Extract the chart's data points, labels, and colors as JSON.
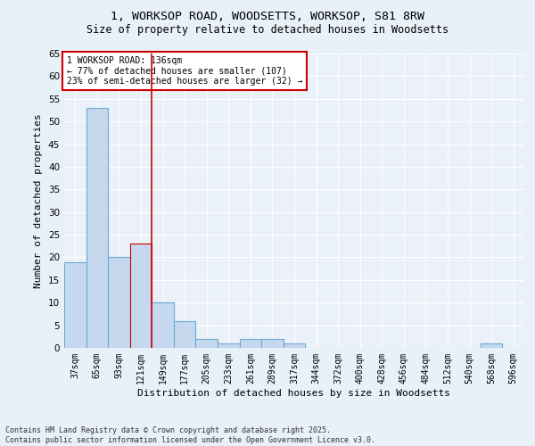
{
  "title1": "1, WORKSOP ROAD, WOODSETTS, WORKSOP, S81 8RW",
  "title2": "Size of property relative to detached houses in Woodsetts",
  "xlabel": "Distribution of detached houses by size in Woodsetts",
  "ylabel": "Number of detached properties",
  "categories": [
    "37sqm",
    "65sqm",
    "93sqm",
    "121sqm",
    "149sqm",
    "177sqm",
    "205sqm",
    "233sqm",
    "261sqm",
    "289sqm",
    "317sqm",
    "344sqm",
    "372sqm",
    "400sqm",
    "428sqm",
    "456sqm",
    "484sqm",
    "512sqm",
    "540sqm",
    "568sqm",
    "596sqm"
  ],
  "values": [
    19,
    53,
    20,
    23,
    10,
    6,
    2,
    1,
    2,
    2,
    1,
    0,
    0,
    0,
    0,
    0,
    0,
    0,
    0,
    1,
    0
  ],
  "bar_color": "#c5d8ed",
  "bar_edge_color": "#6aaad4",
  "highlight_bar_index": 3,
  "highlight_bar_edge_color": "#cc0000",
  "vline_x": 3.5,
  "vline_color": "#cc0000",
  "annotation_text": "1 WORKSOP ROAD: 136sqm\n← 77% of detached houses are smaller (107)\n23% of semi-detached houses are larger (32) →",
  "annotation_box_color": "#ffffff",
  "annotation_box_edge_color": "#cc0000",
  "footer_text": "Contains HM Land Registry data © Crown copyright and database right 2025.\nContains public sector information licensed under the Open Government Licence v3.0.",
  "ylim": [
    0,
    65
  ],
  "yticks": [
    0,
    5,
    10,
    15,
    20,
    25,
    30,
    35,
    40,
    45,
    50,
    55,
    60,
    65
  ],
  "background_color": "#e8f0f8",
  "plot_background_color": "#eaf1f8",
  "grid_color": "#ffffff",
  "title_fontsize": 9.5,
  "subtitle_fontsize": 8.5,
  "tick_fontsize": 7,
  "ylabel_fontsize": 8,
  "xlabel_fontsize": 8,
  "annotation_fontsize": 7,
  "footer_fontsize": 6
}
